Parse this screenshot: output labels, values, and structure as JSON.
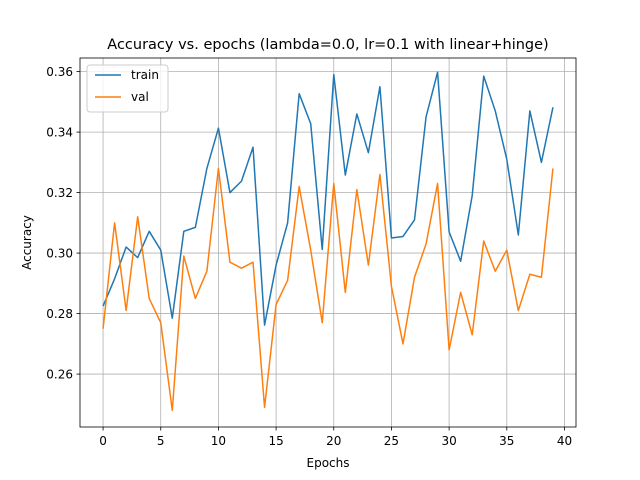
{
  "chart_data": {
    "type": "line",
    "title": "Accuracy vs. epochs (lambda=0.0, lr=0.1 with linear+hinge)",
    "xlabel": "Epochs",
    "ylabel": "Accuracy",
    "xlim": [
      -2,
      41
    ],
    "ylim": [
      0.2425,
      0.3645
    ],
    "xticks": [
      0,
      5,
      10,
      15,
      20,
      25,
      30,
      35,
      40
    ],
    "xtick_labels": [
      "0",
      "5",
      "10",
      "15",
      "20",
      "25",
      "30",
      "35",
      "40"
    ],
    "yticks": [
      0.26,
      0.28,
      0.3,
      0.32,
      0.34,
      0.36
    ],
    "ytick_labels": [
      "0.26",
      "0.28",
      "0.30",
      "0.32",
      "0.34",
      "0.36"
    ],
    "grid": true,
    "legend_position": "top-left",
    "x": [
      0,
      1,
      2,
      3,
      4,
      5,
      6,
      7,
      8,
      9,
      10,
      11,
      12,
      13,
      14,
      15,
      16,
      17,
      18,
      19,
      20,
      21,
      22,
      23,
      24,
      25,
      26,
      27,
      28,
      29,
      30,
      31,
      32,
      33,
      34,
      35,
      36,
      37,
      38,
      39
    ],
    "series": [
      {
        "name": "train",
        "color": "#1f77b4",
        "values": [
          0.2825,
          0.2915,
          0.302,
          0.2985,
          0.3072,
          0.301,
          0.2785,
          0.3072,
          0.3085,
          0.328,
          0.3413,
          0.32,
          0.3238,
          0.335,
          0.2762,
          0.296,
          0.31,
          0.3527,
          0.3428,
          0.3012,
          0.359,
          0.3258,
          0.346,
          0.3332,
          0.355,
          0.305,
          0.3055,
          0.311,
          0.345,
          0.3598,
          0.307,
          0.2973,
          0.319,
          0.3585,
          0.347,
          0.331,
          0.306,
          0.347,
          0.33,
          0.3482
        ]
      },
      {
        "name": "val",
        "color": "#ff7f0e",
        "values": [
          0.275,
          0.31,
          0.281,
          0.312,
          0.285,
          0.277,
          0.248,
          0.299,
          0.285,
          0.294,
          0.328,
          0.297,
          0.295,
          0.297,
          0.249,
          0.283,
          0.291,
          0.322,
          0.301,
          0.277,
          0.323,
          0.287,
          0.321,
          0.296,
          0.326,
          0.289,
          0.27,
          0.292,
          0.303,
          0.323,
          0.268,
          0.287,
          0.273,
          0.304,
          0.294,
          0.301,
          0.281,
          0.293,
          0.292,
          0.328
        ]
      }
    ]
  }
}
